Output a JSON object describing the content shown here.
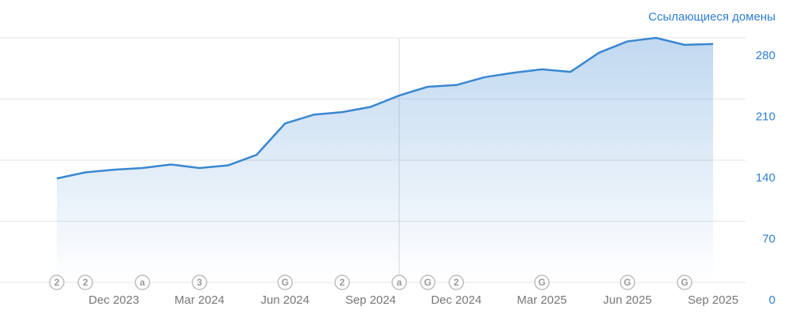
{
  "chart_data": {
    "type": "area",
    "y_axis_label": "Ссылающиеся домены",
    "categories": [
      null,
      null,
      "Dec 2023",
      null,
      null,
      "Mar 2024",
      null,
      null,
      "Jun 2024",
      null,
      null,
      "Sep 2024",
      null,
      null,
      "Dec 2024",
      null,
      null,
      "Mar 2025",
      null,
      null,
      "Jun 2025",
      null,
      null,
      "Sep 2025"
    ],
    "values": [
      119,
      126,
      129,
      131,
      135,
      131,
      134,
      146,
      182,
      192,
      195,
      201,
      214,
      224,
      226,
      235,
      240,
      244,
      241,
      263,
      276,
      280,
      272,
      273
    ],
    "annotations": [
      "2",
      "2",
      null,
      "a",
      null,
      "3",
      null,
      null,
      "G",
      null,
      "2",
      null,
      "a",
      "G",
      "2",
      null,
      null,
      "G",
      null,
      null,
      "G",
      null,
      "G",
      null
    ],
    "color": "#3a87d0",
    "ylim": [
      0,
      280
    ],
    "yticks": [
      0,
      70,
      140,
      210,
      280
    ],
    "grid": true
  }
}
